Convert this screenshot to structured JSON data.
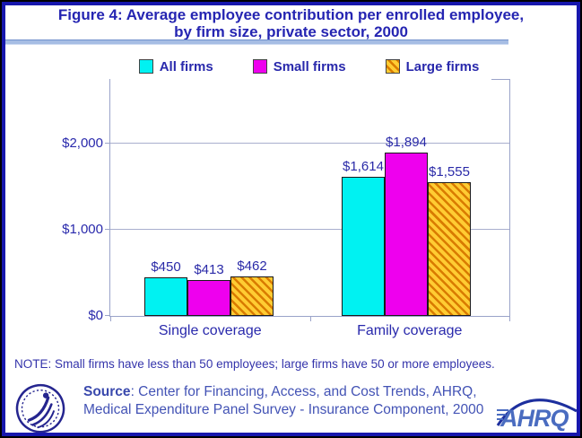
{
  "title": {
    "line1": "Figure 4: Average employee contribution per enrolled employee,",
    "line2": "by firm size, private sector, 2000"
  },
  "chart_data": {
    "type": "bar",
    "title": "Figure 4: Average employee contribution per enrolled employee, by firm size, private sector, 2000",
    "categories": [
      "Single coverage",
      "Family coverage"
    ],
    "series": [
      {
        "name": "All firms",
        "color": "#00f2f2",
        "values": [
          450,
          1614
        ],
        "labels": [
          "$450",
          "$1,614"
        ]
      },
      {
        "name": "Small firms",
        "color": "#ee00ee",
        "values": [
          413,
          1894
        ],
        "labels": [
          "$413",
          "$1,894"
        ]
      },
      {
        "name": "Large firms",
        "color": "#ffcc33",
        "hatch_color": "#d97b00",
        "values": [
          462,
          1555
        ],
        "labels": [
          "$462",
          "$1,555"
        ]
      }
    ],
    "yticks": [
      {
        "value": 0,
        "label": "$0"
      },
      {
        "value": 1000,
        "label": "$1,000"
      },
      {
        "value": 2000,
        "label": "$2,000"
      }
    ],
    "ylim": [
      0,
      2750
    ],
    "grid": true,
    "legend_position": "top",
    "xlabel": "",
    "ylabel": ""
  },
  "note": "NOTE: Small firms have less than 50 employees; large firms have 50 or more employees.",
  "source": {
    "bold": "Source",
    "line1": ": Center for Financing, Access, and Cost Trends, AHRQ,",
    "line2": "Medical Expenditure Panel Survey - Insurance Component, 2000"
  },
  "logos": {
    "ahrq_text": "AHRQ",
    "hhs_seal": "U.S. Department of Health and Human Services seal"
  },
  "colors": {
    "frame": "#1717ad",
    "text_navy": "#2929ac",
    "axis": "#9aa3c9",
    "divider": "#a6bde4"
  }
}
